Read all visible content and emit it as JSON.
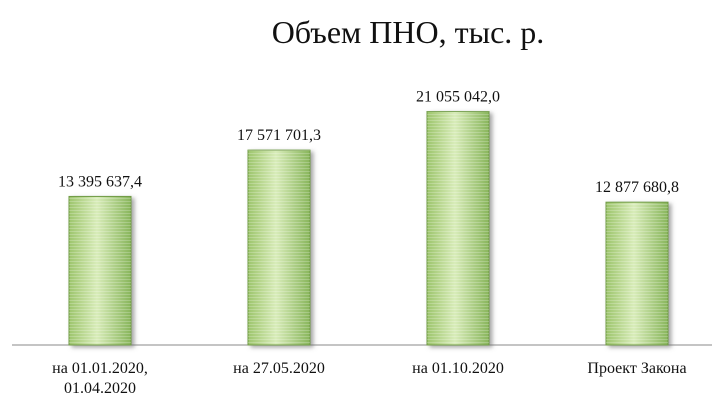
{
  "chart_data": {
    "type": "bar",
    "title": "Объем ПНО, тыс. р.",
    "categories": [
      [
        "на 01.01.2020,",
        "01.04.2020"
      ],
      [
        "на 27.05.2020"
      ],
      [
        "на 01.10.2020"
      ],
      [
        "Проект Закона"
      ]
    ],
    "values": [
      13395637.4,
      17571701.3,
      21055042.0,
      12877680.8
    ],
    "value_labels": [
      "13 395 637,4",
      "17 571 701,3",
      "21 055 042,0",
      "12 877 680,8"
    ],
    "ylim": [
      0,
      22000000
    ],
    "grid": false,
    "legend": "none",
    "colors": {
      "bar_fill": "#b8d98a",
      "bar_stroke": "#6f9a44",
      "bar_shadow": "#9d9d9d",
      "axis": "#8a8a8a"
    }
  }
}
